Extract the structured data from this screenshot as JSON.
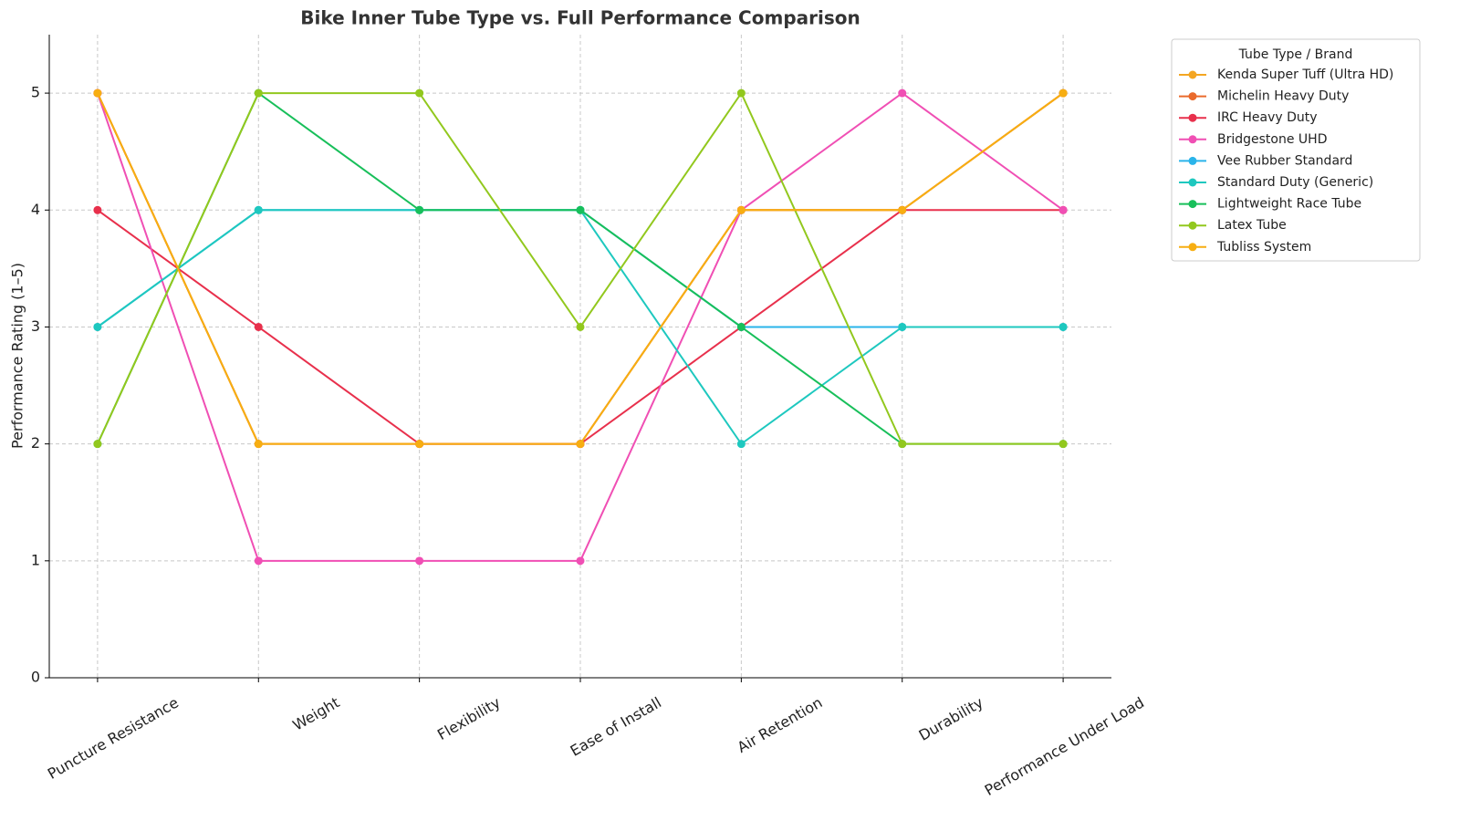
{
  "chart_data": {
    "type": "line",
    "title": "Bike Inner Tube Type vs. Full Performance Comparison",
    "y_label": "Performance Rating (1–5)",
    "legend_title": "Tube Type / Brand",
    "categories": [
      "Puncture Resistance",
      "Weight",
      "Flexibility",
      "Ease of Install",
      "Air Retention",
      "Durability",
      "Performance Under Load"
    ],
    "series": [
      {
        "name": "Kenda Super Tuff (Ultra HD)",
        "color": "#f4a622",
        "values": [
          5,
          2,
          2,
          2,
          4,
          4,
          5
        ]
      },
      {
        "name": "Michelin Heavy Duty",
        "color": "#ea6a2c",
        "values": [
          5,
          2,
          2,
          2,
          4,
          4,
          5
        ]
      },
      {
        "name": "IRC Heavy Duty",
        "color": "#e8304c",
        "values": [
          4,
          3,
          2,
          2,
          3,
          4,
          4
        ]
      },
      {
        "name": "Bridgestone UHD",
        "color": "#f04fb4",
        "values": [
          5,
          1,
          1,
          1,
          4,
          5,
          4
        ]
      },
      {
        "name": "Vee Rubber Standard",
        "color": "#2ab4ea",
        "values": [
          3,
          4,
          4,
          4,
          3,
          3,
          3
        ]
      },
      {
        "name": "Standard Duty (Generic)",
        "color": "#1ec8bf",
        "values": [
          3,
          4,
          4,
          4,
          2,
          3,
          3
        ]
      },
      {
        "name": "Lightweight Race Tube",
        "color": "#18bf5a",
        "values": [
          2,
          5,
          4,
          4,
          3,
          2,
          2
        ]
      },
      {
        "name": "Latex Tube",
        "color": "#92c81e",
        "values": [
          2,
          5,
          5,
          3,
          5,
          2,
          2
        ]
      },
      {
        "name": "Tubliss System",
        "color": "#f7ae12",
        "values": [
          5,
          2,
          2,
          2,
          4,
          4,
          5
        ]
      }
    ],
    "ylim": [
      0,
      5.5
    ],
    "yticks": [
      0,
      1,
      2,
      3,
      4,
      5
    ],
    "grid": true
  }
}
